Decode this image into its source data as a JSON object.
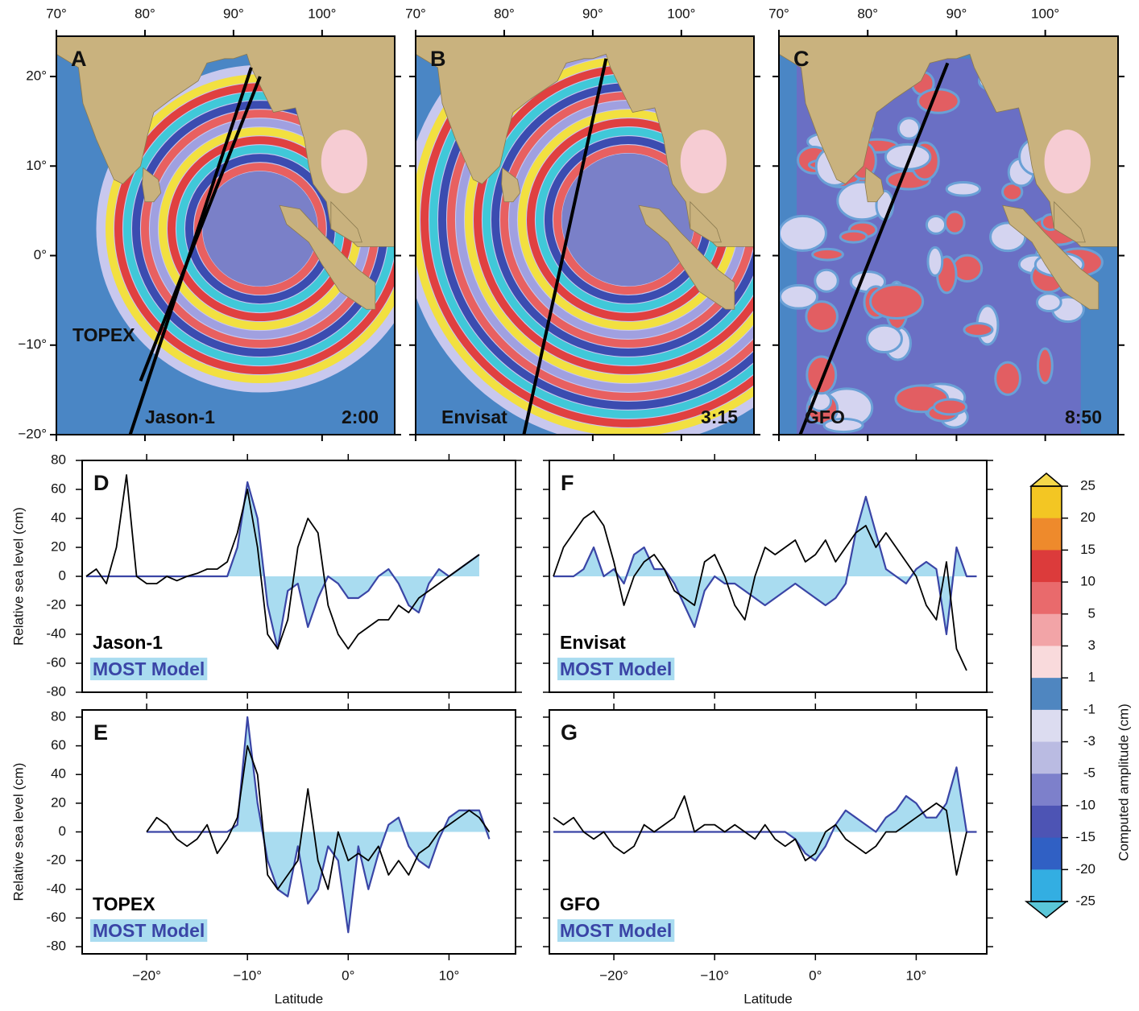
{
  "chart_data": [
    {
      "type": "map",
      "panel": "A",
      "labels": [
        "TOPEX",
        "Jason-1"
      ],
      "time": "2:00",
      "xlim": [
        70,
        108.2
      ],
      "xticks": [
        {
          "value": 70,
          "label": "70°"
        },
        {
          "value": 80,
          "label": "80°"
        },
        {
          "value": 90,
          "label": "90°"
        },
        {
          "value": 100,
          "label": "100°"
        }
      ],
      "ylim": [
        -20,
        24.5
      ],
      "yticks": [
        {
          "value": 20,
          "label": "20°"
        },
        {
          "value": 10,
          "label": "10°"
        },
        {
          "value": 0,
          "label": "0°"
        },
        {
          "value": -10,
          "label": "−10°"
        },
        {
          "value": -20,
          "label": "−20°"
        }
      ]
    },
    {
      "type": "map",
      "panel": "B",
      "labels": [
        "Envisat"
      ],
      "time": "3:15",
      "xlim": [
        70,
        108.2
      ],
      "xticks": [
        {
          "value": 70,
          "label": "70°"
        },
        {
          "value": 80,
          "label": "80°"
        },
        {
          "value": 90,
          "label": "90°"
        },
        {
          "value": 100,
          "label": "100°"
        }
      ],
      "ylim": [
        -20,
        24.5
      ],
      "yticks": [
        20,
        10,
        0,
        -10,
        -20
      ]
    },
    {
      "type": "map",
      "panel": "C",
      "labels": [
        "GFO"
      ],
      "time": "8:50",
      "xlim": [
        70,
        108.2
      ],
      "xticks": [
        {
          "value": 70,
          "label": "70°"
        },
        {
          "value": 80,
          "label": "80°"
        },
        {
          "value": 90,
          "label": "90°"
        },
        {
          "value": 100,
          "label": "100°"
        }
      ],
      "ylim": [
        -20,
        24.5
      ],
      "yticks": [
        20,
        10,
        0,
        -10,
        -20
      ]
    },
    {
      "type": "line",
      "panel": "D",
      "ylabel": "Relative sea level (cm)",
      "ytick_labels": true,
      "xlim": [
        -26.4,
        16.6
      ],
      "xticks": [
        -20,
        -10,
        0,
        10
      ],
      "ylim": [
        -80,
        80
      ],
      "yticks": [
        -80,
        -60,
        -40,
        -20,
        0,
        20,
        40,
        60,
        80
      ],
      "x": [
        -26,
        -25,
        -24,
        -23,
        -22,
        -21,
        -20,
        -19,
        -18,
        -17,
        -16,
        -15,
        -14,
        -13,
        -12,
        -11,
        -10,
        -9,
        -8,
        -7,
        -6,
        -5,
        -4,
        -3,
        -2,
        -1,
        0,
        1,
        2,
        3,
        4,
        5,
        6,
        7,
        8,
        9,
        10,
        11,
        12,
        13,
        14
      ],
      "series": [
        {
          "name": "Jason-1",
          "color": "#000000",
          "values": [
            0,
            5,
            -5,
            20,
            70,
            0,
            -5,
            -5,
            0,
            -3,
            0,
            2,
            5,
            5,
            10,
            30,
            60,
            20,
            -40,
            -50,
            -30,
            20,
            40,
            30,
            -20,
            -40,
            -50,
            -40,
            -35,
            -30,
            -30,
            -20,
            -25,
            -15,
            -10,
            -5,
            0,
            5,
            10,
            15,
            null
          ]
        },
        {
          "name": "MOST Model",
          "color": "#3a45a6",
          "fill": "#a9dcf0",
          "values": [
            0,
            0,
            0,
            0,
            0,
            0,
            0,
            0,
            0,
            0,
            0,
            0,
            0,
            0,
            0,
            20,
            65,
            40,
            -20,
            -50,
            -10,
            -5,
            -35,
            -15,
            0,
            -5,
            -15,
            -15,
            -10,
            0,
            5,
            -5,
            -20,
            -25,
            -5,
            5,
            0,
            5,
            10,
            15,
            null
          ]
        }
      ]
    },
    {
      "type": "line",
      "panel": "E",
      "ylabel": "Relative sea level (cm)",
      "xlabel": "Latitude",
      "ytick_labels": true,
      "xlim": [
        -26.4,
        16.6
      ],
      "xticks": [
        {
          "value": -20,
          "label": "−20°"
        },
        {
          "value": -10,
          "label": "−10°"
        },
        {
          "value": 0,
          "label": "0°"
        },
        {
          "value": 10,
          "label": "10°"
        }
      ],
      "ylim": [
        -85,
        85
      ],
      "yticks": [
        -80,
        -60,
        -40,
        -20,
        0,
        20,
        40,
        60,
        80
      ],
      "x": [
        -26,
        -25,
        -24,
        -23,
        -22,
        -21,
        -20,
        -19,
        -18,
        -17,
        -16,
        -15,
        -14,
        -13,
        -12,
        -11,
        -10,
        -9,
        -8,
        -7,
        -6,
        -5,
        -4,
        -3,
        -2,
        -1,
        0,
        1,
        2,
        3,
        4,
        5,
        6,
        7,
        8,
        9,
        10,
        11,
        12,
        13,
        14
      ],
      "series": [
        {
          "name": "TOPEX",
          "color": "#000000",
          "values": [
            null,
            null,
            null,
            null,
            null,
            null,
            0,
            10,
            5,
            -5,
            -10,
            -5,
            5,
            -15,
            -5,
            10,
            60,
            40,
            -30,
            -40,
            -30,
            -20,
            30,
            -20,
            -40,
            0,
            -20,
            -15,
            -20,
            -10,
            -30,
            -20,
            -30,
            -15,
            -10,
            0,
            5,
            10,
            15,
            10,
            0
          ]
        },
        {
          "name": "MOST Model",
          "color": "#3a45a6",
          "fill": "#a9dcf0",
          "values": [
            null,
            null,
            null,
            null,
            null,
            null,
            0,
            0,
            0,
            0,
            0,
            0,
            0,
            0,
            0,
            5,
            80,
            20,
            -20,
            -40,
            -45,
            -10,
            -50,
            -40,
            -10,
            -20,
            -70,
            -10,
            -40,
            -15,
            5,
            10,
            -10,
            -20,
            -25,
            -5,
            10,
            15,
            15,
            15,
            -5
          ]
        }
      ]
    },
    {
      "type": "line",
      "panel": "F",
      "ytick_labels": false,
      "xlim": [
        -26.4,
        17
      ],
      "xticks": [
        -20,
        -10,
        0,
        10
      ],
      "ylim": [
        -80,
        80
      ],
      "yticks": [
        -80,
        -60,
        -40,
        -20,
        0,
        20,
        40,
        60,
        80
      ],
      "x": [
        -26,
        -25,
        -24,
        -23,
        -22,
        -21,
        -20,
        -19,
        -18,
        -17,
        -16,
        -15,
        -14,
        -13,
        -12,
        -11,
        -10,
        -9,
        -8,
        -7,
        -6,
        -5,
        -4,
        -3,
        -2,
        -1,
        0,
        1,
        2,
        3,
        4,
        5,
        6,
        7,
        8,
        9,
        10,
        11,
        12,
        13,
        14,
        15,
        16
      ],
      "series": [
        {
          "name": "Envisat",
          "color": "#000000",
          "values": [
            0,
            20,
            30,
            40,
            45,
            35,
            10,
            -20,
            0,
            10,
            15,
            5,
            -10,
            -15,
            -20,
            10,
            15,
            0,
            -20,
            -30,
            0,
            20,
            15,
            20,
            25,
            10,
            15,
            25,
            10,
            20,
            30,
            35,
            20,
            30,
            20,
            10,
            0,
            -20,
            -30,
            10,
            -50,
            -65,
            null
          ]
        },
        {
          "name": "MOST Model",
          "color": "#3a45a6",
          "fill": "#a9dcf0",
          "values": [
            0,
            0,
            0,
            5,
            20,
            0,
            5,
            -5,
            15,
            20,
            5,
            5,
            -5,
            -20,
            -35,
            -10,
            0,
            -5,
            -5,
            -10,
            -15,
            -20,
            -15,
            -10,
            -5,
            -10,
            -15,
            -20,
            -15,
            -5,
            30,
            55,
            30,
            5,
            0,
            -5,
            5,
            10,
            5,
            -40,
            20,
            0,
            0
          ]
        }
      ]
    },
    {
      "type": "line",
      "panel": "G",
      "xlabel": "Latitude",
      "ytick_labels": false,
      "xlim": [
        -26.4,
        17
      ],
      "xticks": [
        {
          "value": -20,
          "label": "−20°"
        },
        {
          "value": -10,
          "label": "−10°"
        },
        {
          "value": 0,
          "label": "0°"
        },
        {
          "value": 10,
          "label": "10°"
        }
      ],
      "ylim": [
        -85,
        85
      ],
      "yticks": [
        -80,
        -60,
        -40,
        -20,
        0,
        20,
        40,
        60,
        80
      ],
      "x": [
        -26,
        -25,
        -24,
        -23,
        -22,
        -21,
        -20,
        -19,
        -18,
        -17,
        -16,
        -15,
        -14,
        -13,
        -12,
        -11,
        -10,
        -9,
        -8,
        -7,
        -6,
        -5,
        -4,
        -3,
        -2,
        -1,
        0,
        1,
        2,
        3,
        4,
        5,
        6,
        7,
        8,
        9,
        10,
        11,
        12,
        13,
        14,
        15,
        16
      ],
      "series": [
        {
          "name": "GFO",
          "color": "#000000",
          "values": [
            10,
            5,
            10,
            0,
            -5,
            0,
            -10,
            -15,
            -10,
            5,
            0,
            5,
            10,
            25,
            0,
            5,
            5,
            0,
            5,
            0,
            -5,
            5,
            -5,
            -10,
            -5,
            -20,
            -15,
            0,
            5,
            -5,
            -10,
            -15,
            -10,
            0,
            0,
            5,
            10,
            15,
            20,
            15,
            -30,
            0,
            null
          ]
        },
        {
          "name": "MOST Model",
          "color": "#3a45a6",
          "fill": "#a9dcf0",
          "values": [
            0,
            0,
            0,
            0,
            0,
            0,
            0,
            0,
            0,
            0,
            0,
            0,
            0,
            0,
            0,
            0,
            0,
            0,
            0,
            0,
            0,
            0,
            0,
            0,
            -5,
            -15,
            -20,
            -10,
            5,
            15,
            10,
            5,
            0,
            10,
            15,
            25,
            20,
            10,
            10,
            20,
            45,
            0,
            0
          ]
        }
      ]
    },
    {
      "type": "colorbar",
      "label": "Computed amplitude (cm)",
      "ticks": [
        25,
        20,
        15,
        10,
        5,
        3,
        1,
        -1,
        -3,
        -5,
        -10,
        -15,
        -20,
        -25
      ],
      "colors": [
        "#f3c623",
        "#ee8a2c",
        "#dc3b3b",
        "#e96a6c",
        "#f2a4a7",
        "#f9dadc",
        "#4f86c0",
        "#dcdcf0",
        "#babbe2",
        "#7d80cb",
        "#4d54b4",
        "#3060c4",
        "#33aee2"
      ],
      "over_color": "#f5d84a",
      "under_color": "#5ac6d8"
    }
  ]
}
